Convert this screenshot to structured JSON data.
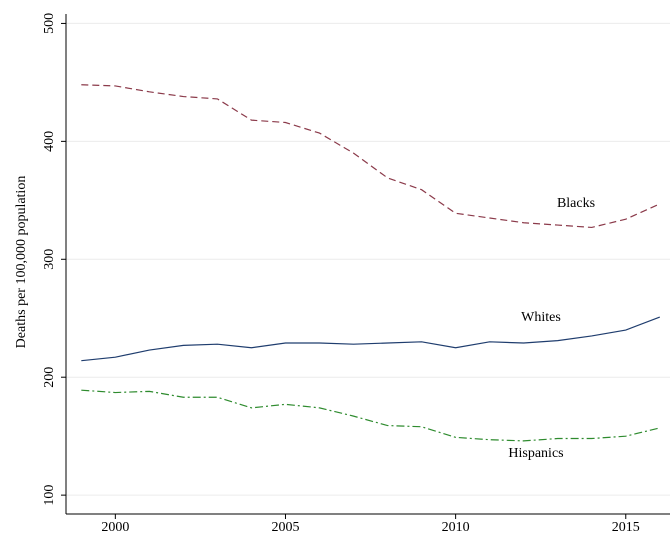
{
  "chart_data": {
    "type": "line",
    "y_label": "Deaths per 100,000 population",
    "x": [
      1999,
      2000,
      2001,
      2002,
      2003,
      2004,
      2005,
      2006,
      2007,
      2008,
      2009,
      2010,
      2011,
      2012,
      2013,
      2014,
      2015,
      2016
    ],
    "series": [
      {
        "name": "Blacks",
        "color": "#8b3a4a",
        "dash": "7,4",
        "values": [
          448,
          447,
          442,
          438,
          436,
          418,
          416,
          407,
          390,
          369,
          359,
          339,
          335,
          331,
          329,
          327,
          334,
          347
        ]
      },
      {
        "name": "Whites",
        "color": "#1f3d6e",
        "dash": "none",
        "values": [
          214,
          217,
          223,
          227,
          228,
          225,
          229,
          229,
          228,
          229,
          230,
          225,
          230,
          229,
          231,
          235,
          240,
          251
        ]
      },
      {
        "name": "Hispanics",
        "color": "#2e8b2e",
        "dash": "8,3,2,3",
        "values": [
          189,
          187,
          188,
          183,
          183,
          174,
          177,
          174,
          167,
          159,
          158,
          149,
          147,
          146,
          148,
          148,
          150,
          157
        ]
      }
    ],
    "xlim": [
      1998.55,
      2016.3
    ],
    "xticks": [
      2000,
      2005,
      2010,
      2015
    ],
    "ylim": [
      84,
      508
    ],
    "yticks": [
      100,
      200,
      300,
      400,
      500
    ],
    "grid": true
  }
}
